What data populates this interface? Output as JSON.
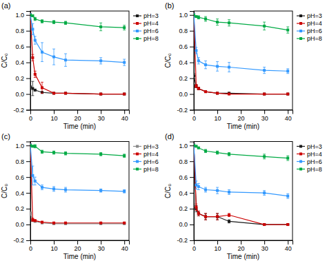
{
  "chart_data": [
    {
      "type": "line",
      "title": "(a)",
      "x_label": "Time (min)",
      "y_label": "C/C₀",
      "x": [
        0,
        1,
        2,
        5,
        10,
        15,
        30,
        40
      ],
      "xlim": [
        0,
        42
      ],
      "xticks": [
        0,
        10,
        20,
        30,
        40
      ],
      "ylim": [
        -0.2,
        1.05
      ],
      "yticks": [
        -0.2,
        {
          "value": 0,
          "label": "0.0"
        },
        0.2,
        0.4,
        0.6,
        0.8,
        {
          "value": 1,
          "label": "1.0"
        }
      ],
      "legend": "upper right",
      "marker": "square",
      "series": [
        {
          "name": "pH=3",
          "color": "#1a1a1a",
          "values": [
            0.09,
            0.07,
            0.05,
            0.02,
            0.01,
            0.01,
            0.0,
            0.0
          ],
          "errors": [
            0.01,
            0.09,
            0.01,
            0.01,
            0.005,
            0.005,
            0.005,
            0.005
          ]
        },
        {
          "name": "pH=4",
          "color": "#cc0000",
          "values": [
            1.0,
            0.46,
            0.25,
            0.08,
            0.01,
            0.01,
            0.0,
            0.0
          ],
          "errors": [
            0.02,
            0.04,
            0.04,
            0.07,
            0.005,
            0.005,
            0.005,
            0.005
          ]
        },
        {
          "name": "pH=6",
          "color": "#3399ff",
          "values": [
            1.0,
            0.82,
            0.68,
            0.53,
            0.47,
            0.43,
            0.42,
            0.4
          ],
          "errors": [
            0.02,
            0.07,
            0.05,
            0.12,
            0.1,
            0.08,
            0.04,
            0.04
          ]
        },
        {
          "name": "pH=8",
          "color": "#00aa44",
          "values": [
            1.0,
            0.99,
            0.95,
            0.92,
            0.91,
            0.9,
            0.85,
            0.84
          ],
          "errors": [
            0.01,
            0.01,
            0.02,
            0.02,
            0.02,
            0.02,
            0.05,
            0.03
          ]
        }
      ]
    },
    {
      "type": "line",
      "title": "(b)",
      "x_label": "Time (min)",
      "y_label": "C/C₀",
      "x": [
        0,
        1,
        2,
        5,
        10,
        15,
        30,
        40
      ],
      "xlim": [
        0,
        42
      ],
      "xticks": [
        0,
        10,
        20,
        30,
        40
      ],
      "ylim": [
        -0.2,
        1.05
      ],
      "yticks": [
        -0.2,
        {
          "value": 0,
          "label": "0.0"
        },
        0.2,
        0.4,
        0.6,
        0.8,
        {
          "value": 1,
          "label": "1.0"
        }
      ],
      "legend": "upper right",
      "marker": "square",
      "series": [
        {
          "name": "pH=3",
          "color": "#1a1a1a",
          "values": [
            0.23,
            0.1,
            0.07,
            0.03,
            0.01,
            0.01,
            0.0,
            0.0
          ],
          "errors": [
            0.03,
            0.02,
            0.015,
            0.01,
            0.01,
            0.01,
            0.005,
            0.005
          ]
        },
        {
          "name": "pH=4",
          "color": "#cc0000",
          "values": [
            1.0,
            0.1,
            0.07,
            0.03,
            0.01,
            0.0,
            0.0,
            0.0
          ],
          "errors": [
            0.02,
            0.02,
            0.015,
            0.01,
            0.005,
            0.005,
            0.005,
            0.005
          ]
        },
        {
          "name": "pH=6",
          "color": "#3399ff",
          "values": [
            1.0,
            0.55,
            0.42,
            0.37,
            0.35,
            0.34,
            0.3,
            0.29
          ],
          "errors": [
            0.02,
            0.04,
            0.04,
            0.05,
            0.06,
            0.06,
            0.04,
            0.03
          ]
        },
        {
          "name": "pH=8",
          "color": "#00aa44",
          "values": [
            1.0,
            0.98,
            0.97,
            0.95,
            0.91,
            0.9,
            0.86,
            0.81
          ],
          "errors": [
            0.01,
            0.01,
            0.02,
            0.03,
            0.04,
            0.04,
            0.05,
            0.04
          ]
        }
      ]
    },
    {
      "type": "line",
      "title": "(c)",
      "x_label": "Time (min)",
      "y_label": "C/C₀",
      "x": [
        0,
        1,
        2,
        5,
        10,
        15,
        30,
        40
      ],
      "xlim": [
        0,
        42
      ],
      "xticks": [
        0,
        10,
        20,
        30,
        40
      ],
      "ylim": [
        -0.2,
        1.05
      ],
      "yticks": [
        -0.2,
        {
          "value": 0,
          "label": "0.0"
        },
        0.2,
        0.4,
        0.6,
        0.8,
        {
          "value": 1,
          "label": "1.0"
        }
      ],
      "legend": "upper right",
      "marker": "square",
      "series": [
        {
          "name": "pH=3",
          "color": "#888888",
          "values": [
            0.14,
            0.05,
            0.04,
            0.02,
            0.01,
            0.01,
            0.01,
            0.01
          ],
          "errors": [
            0.02,
            0.01,
            0.01,
            0.005,
            0.005,
            0.005,
            0.005,
            0.005
          ]
        },
        {
          "name": "pH=4",
          "color": "#cc0000",
          "values": [
            1.0,
            0.06,
            0.05,
            0.03,
            0.02,
            0.02,
            0.02,
            0.02
          ],
          "errors": [
            0.02,
            0.02,
            0.01,
            0.01,
            0.005,
            0.005,
            0.005,
            0.005
          ]
        },
        {
          "name": "pH=6",
          "color": "#3399ff",
          "values": [
            1.0,
            0.62,
            0.55,
            0.47,
            0.45,
            0.44,
            0.43,
            0.42
          ],
          "errors": [
            0.02,
            0.12,
            0.05,
            0.03,
            0.03,
            0.03,
            0.02,
            0.02
          ]
        },
        {
          "name": "pH=8",
          "color": "#00aa44",
          "values": [
            1.0,
            0.99,
            0.99,
            0.92,
            0.91,
            0.9,
            0.89,
            0.87
          ],
          "errors": [
            0.01,
            0.01,
            0.02,
            0.02,
            0.02,
            0.02,
            0.02,
            0.02
          ]
        }
      ]
    },
    {
      "type": "line",
      "title": "(d)",
      "x_label": "Time (min)",
      "y_label": "C/C₀",
      "x": [
        0,
        1,
        2,
        5,
        10,
        15,
        30,
        40
      ],
      "xlim": [
        0,
        42
      ],
      "xticks": [
        0,
        10,
        20,
        30,
        40
      ],
      "ylim": [
        -0.2,
        1.05
      ],
      "yticks": [
        -0.2,
        {
          "value": 0,
          "label": "0.0"
        },
        0.2,
        0.4,
        0.6,
        0.8,
        {
          "value": 1,
          "label": "1.0"
        }
      ],
      "legend": "upper right",
      "marker": "square",
      "series": [
        {
          "name": "pH=3",
          "color": "#1a1a1a",
          "values": [
            1.0,
            0.2,
            0.14,
            0.1,
            0.1,
            0.04,
            0.0,
            0.0
          ],
          "errors": [
            0.02,
            0.04,
            0.03,
            0.04,
            0.04,
            0.02,
            0.005,
            0.005
          ]
        },
        {
          "name": "pH=4",
          "color": "#cc0000",
          "values": [
            1.0,
            0.22,
            0.14,
            0.1,
            0.1,
            0.12,
            0.0,
            0.0
          ],
          "errors": [
            0.02,
            0.04,
            0.03,
            0.04,
            0.04,
            0.02,
            0.005,
            0.005
          ]
        },
        {
          "name": "pH=6",
          "color": "#3399ff",
          "values": [
            1.0,
            0.5,
            0.48,
            0.44,
            0.43,
            0.41,
            0.4,
            0.36
          ],
          "errors": [
            0.02,
            0.05,
            0.04,
            0.03,
            0.04,
            0.03,
            0.03,
            0.03
          ]
        },
        {
          "name": "pH=8",
          "color": "#00aa44",
          "values": [
            1.0,
            0.99,
            0.97,
            0.93,
            0.91,
            0.89,
            0.86,
            0.84
          ],
          "errors": [
            0.01,
            0.01,
            0.01,
            0.02,
            0.02,
            0.02,
            0.03,
            0.03
          ]
        }
      ]
    }
  ]
}
